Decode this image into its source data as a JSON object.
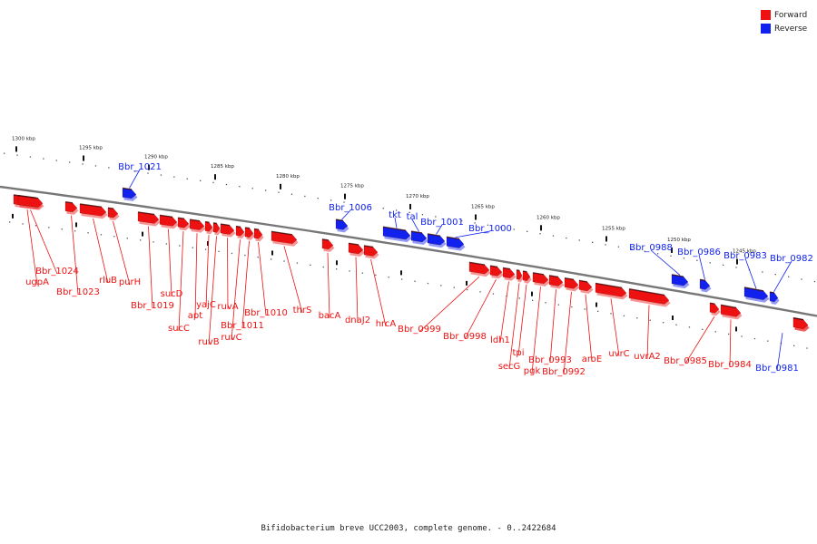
{
  "legend": {
    "forward_label": "Forward",
    "reverse_label": "Reverse",
    "forward_color": "#ee1111",
    "reverse_color": "#1122ee"
  },
  "caption": "Bifidobacterium breve UCC2003, complete genome. - 0..2422684",
  "scale": {
    "unit": "kbp",
    "major_ticks_kbp": [
      1300,
      1295,
      1290,
      1285,
      1280,
      1275,
      1270,
      1265,
      1260,
      1255,
      1250,
      1245
    ]
  },
  "forward_color": "#ee1111",
  "reverse_color": "#1122ee",
  "genes_forward": [
    "ugpA",
    "Bbr_1024",
    "Bbr_1023",
    "rluB",
    "purH",
    "Bbr_1019",
    "sucD",
    "sucC",
    "apt",
    "yajC",
    "ruvB",
    "ruvA",
    "ruvC",
    "Bbr_1011",
    "Bbr_1010",
    "thrS",
    "bacA",
    "dnaJ2",
    "hrcA",
    "Bbr_0999",
    "Bbr_0998",
    "ldh1",
    "secG",
    "tpi",
    "pgk",
    "Bbr_0993",
    "Bbr_0992",
    "aroE",
    "uvrC",
    "uvrA2",
    "Bbr_0985",
    "Bbr_0984"
  ],
  "genes_reverse": [
    "Bbr_1021",
    "Bbr_1006",
    "tkt",
    "tal",
    "Bbr_1001",
    "Bbr_1000",
    "Bbr_0988",
    "Bbr_0986",
    "Bbr_0983",
    "Bbr_0982",
    "Bbr_0981"
  ]
}
